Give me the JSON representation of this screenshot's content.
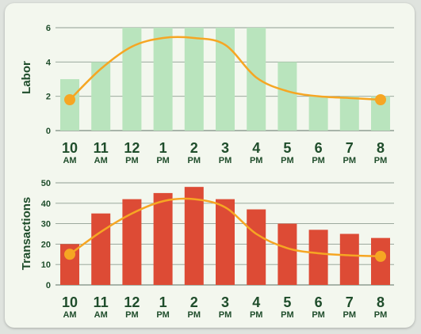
{
  "chart_data": [
    {
      "type": "bar",
      "title": "",
      "ylabel": "Labor",
      "xlabel": "",
      "ylim": [
        0,
        6
      ],
      "yticks": [
        0,
        2,
        4,
        6
      ],
      "categories": [
        {
          "num": "10",
          "sub": "AM"
        },
        {
          "num": "11",
          "sub": "AM"
        },
        {
          "num": "12",
          "sub": "PM"
        },
        {
          "num": "1",
          "sub": "PM"
        },
        {
          "num": "2",
          "sub": "PM"
        },
        {
          "num": "3",
          "sub": "PM"
        },
        {
          "num": "4",
          "sub": "PM"
        },
        {
          "num": "5",
          "sub": "PM"
        },
        {
          "num": "6",
          "sub": "PM"
        },
        {
          "num": "7",
          "sub": "PM"
        },
        {
          "num": "8",
          "sub": "PM"
        }
      ],
      "values": [
        3,
        4,
        6,
        6,
        6,
        6,
        6,
        4,
        2,
        2,
        2
      ],
      "trend": [
        1.8,
        3.6,
        4.9,
        5.4,
        5.4,
        5.0,
        3.1,
        2.3,
        2.0,
        1.9,
        1.8
      ],
      "bar_color": "#b9e4bd",
      "line_color": "#f6a623"
    },
    {
      "type": "bar",
      "title": "",
      "ylabel": "Transactions",
      "xlabel": "",
      "ylim": [
        0,
        50
      ],
      "yticks": [
        0,
        10,
        20,
        30,
        40,
        50
      ],
      "categories": [
        {
          "num": "10",
          "sub": "AM"
        },
        {
          "num": "11",
          "sub": "AM"
        },
        {
          "num": "12",
          "sub": "PM"
        },
        {
          "num": "1",
          "sub": "PM"
        },
        {
          "num": "2",
          "sub": "PM"
        },
        {
          "num": "3",
          "sub": "PM"
        },
        {
          "num": "4",
          "sub": "PM"
        },
        {
          "num": "5",
          "sub": "PM"
        },
        {
          "num": "6",
          "sub": "PM"
        },
        {
          "num": "7",
          "sub": "PM"
        },
        {
          "num": "8",
          "sub": "PM"
        }
      ],
      "values": [
        20,
        35,
        42,
        45,
        48,
        42,
        37,
        30,
        27,
        25,
        23
      ],
      "trend": [
        15,
        26,
        35,
        41,
        42,
        38,
        25,
        18,
        15.5,
        14.5,
        14
      ],
      "bar_color": "#dd4b35",
      "line_color": "#f6a623"
    }
  ]
}
